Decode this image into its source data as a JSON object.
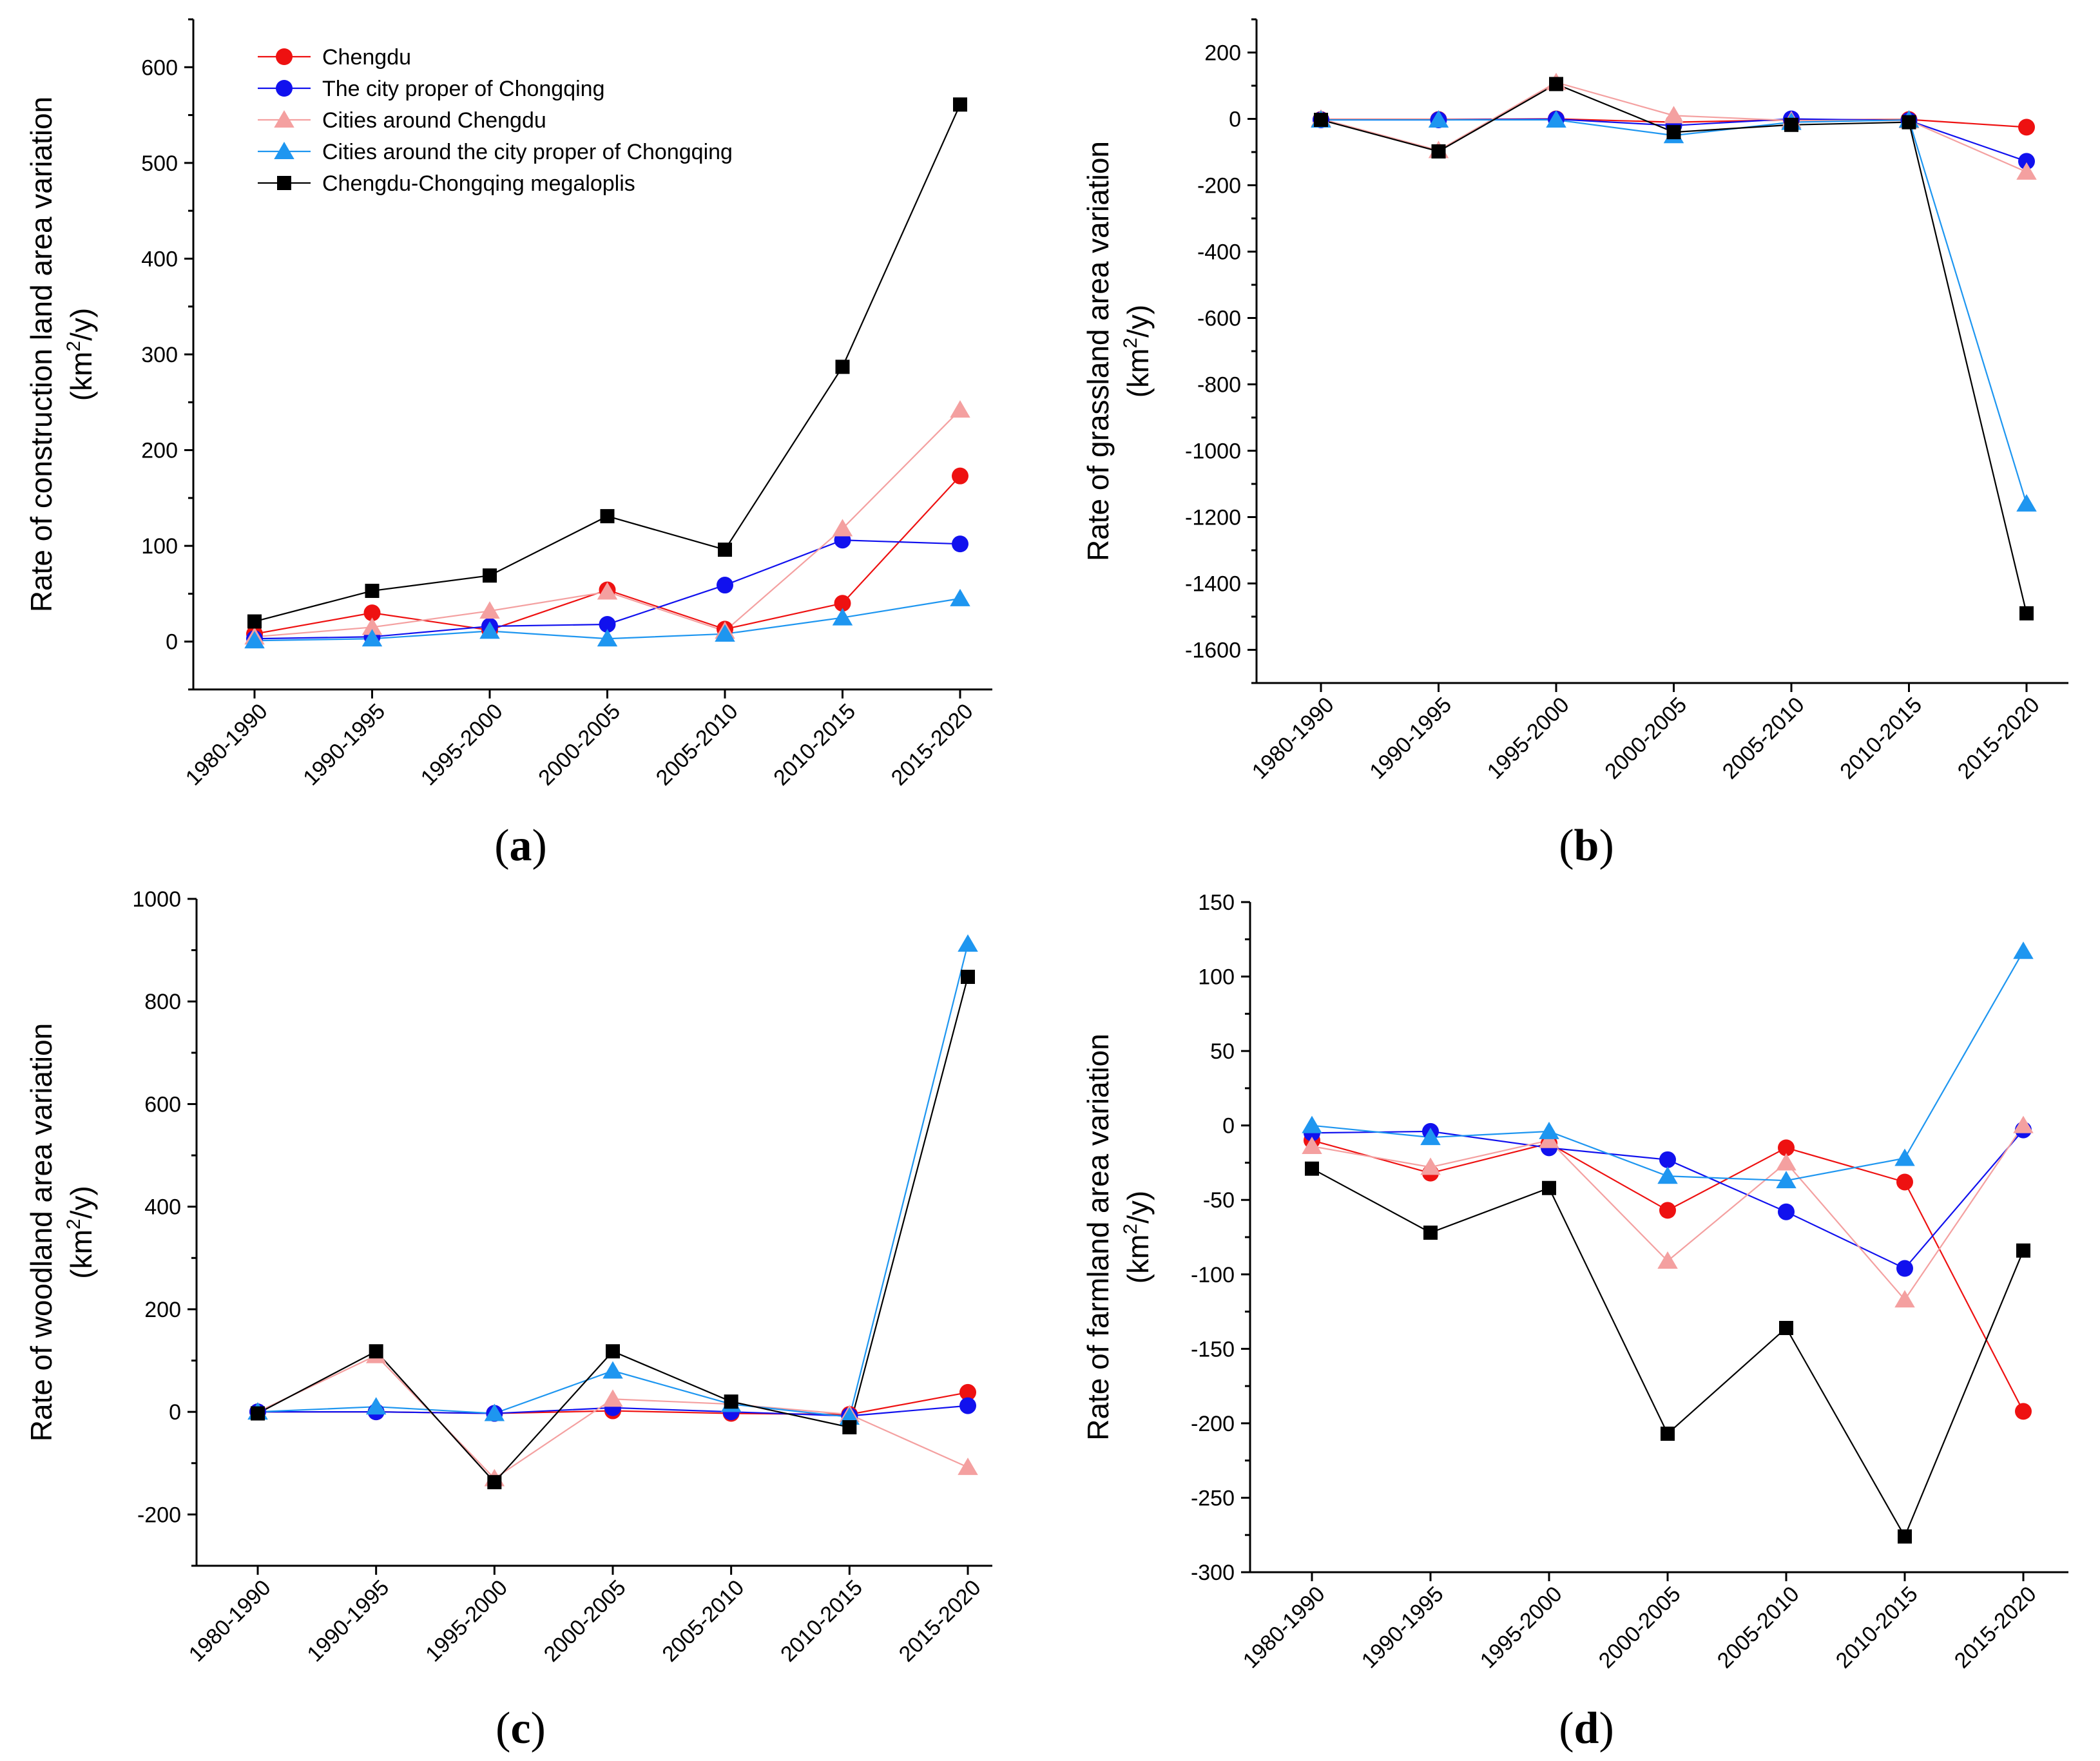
{
  "legend": [
    {
      "name": "Chengdu",
      "color": "#ee1111",
      "marker": "circle"
    },
    {
      "name": "The city proper of Chongqing",
      "color": "#1111ee",
      "marker": "circle"
    },
    {
      "name": "Cities around Chengdu",
      "color": "#f4a0a0",
      "marker": "triangle"
    },
    {
      "name": "Cities around the city proper of Chongqing",
      "color": "#1e96f0",
      "marker": "triangle"
    },
    {
      "name": "Chengdu-Chongqing megaloplis",
      "color": "#000000",
      "marker": "square"
    }
  ],
  "chart_data": [
    {
      "type": "line",
      "panel_label": "a",
      "ylabel_line1": "Rate of construction land area variation",
      "ylabel_line2_pre": "(km",
      "ylabel_line2_sup": "2",
      "ylabel_line2_post": "/y)",
      "categories": [
        "1980-1990",
        "1990-1995",
        "1995-2000",
        "2000-2005",
        "2005-2010",
        "2010-2015",
        "2015-2020"
      ],
      "ylim": [
        -50,
        650
      ],
      "yticks": [
        0,
        100,
        200,
        300,
        400,
        500,
        600
      ],
      "legend_position": "top-left",
      "series": [
        {
          "name": "Chengdu",
          "values": [
            8,
            30,
            12,
            54,
            13,
            40,
            173
          ]
        },
        {
          "name": "The city proper of Chongqing",
          "values": [
            3,
            5,
            16,
            18,
            59,
            106,
            102
          ]
        },
        {
          "name": "Cities around Chengdu",
          "values": [
            5,
            15,
            32,
            52,
            11,
            118,
            242
          ]
        },
        {
          "name": "Cities around the city proper of Chongqing",
          "values": [
            1,
            3,
            11,
            3,
            8,
            25,
            45
          ]
        },
        {
          "name": "Chengdu-Chongqing megaloplis",
          "values": [
            21,
            53,
            69,
            131,
            96,
            287,
            561
          ]
        }
      ]
    },
    {
      "type": "line",
      "panel_label": "b",
      "ylabel_line1": "Rate of grassland area variation",
      "ylabel_line2_pre": "(km",
      "ylabel_line2_sup": "2",
      "ylabel_line2_post": "/y)",
      "categories": [
        "1980-1990",
        "1990-1995",
        "1995-2000",
        "2000-2005",
        "2005-2010",
        "2010-2015",
        "2015-2020"
      ],
      "ylim": [
        -1700,
        300
      ],
      "yticks": [
        -1600,
        -1400,
        -1200,
        -1000,
        -800,
        -600,
        -400,
        -200,
        0,
        200
      ],
      "series": [
        {
          "name": "Chengdu",
          "values": [
            -2,
            -2,
            0,
            -10,
            -3,
            -2,
            -25
          ]
        },
        {
          "name": "The city proper of Chongqing",
          "values": [
            -3,
            -3,
            -1,
            -20,
            0,
            -5,
            -128
          ]
        },
        {
          "name": "Cities around Chengdu",
          "values": [
            0,
            -95,
            110,
            10,
            -5,
            -5,
            -160
          ]
        },
        {
          "name": "Cities around the city proper of Chongqing",
          "values": [
            -3,
            -3,
            -3,
            -50,
            -10,
            -3,
            -1160
          ]
        },
        {
          "name": "Chengdu-Chongqing megaloplis",
          "values": [
            -3,
            -98,
            105,
            -40,
            -18,
            -10,
            -1490
          ]
        }
      ]
    },
    {
      "type": "line",
      "panel_label": "c",
      "ylabel_line1": "Rate of woodland area variation",
      "ylabel_line2_pre": "(km",
      "ylabel_line2_sup": "2",
      "ylabel_line2_post": "/y)",
      "categories": [
        "1980-1990",
        "1990-1995",
        "1995-2000",
        "2000-2005",
        "2005-2010",
        "2010-2015",
        "2015-2020"
      ],
      "ylim": [
        -300,
        1000
      ],
      "yticks": [
        -200,
        0,
        200,
        400,
        600,
        800,
        1000
      ],
      "series": [
        {
          "name": "Chengdu",
          "values": [
            0,
            0,
            -3,
            2,
            -3,
            -5,
            38
          ]
        },
        {
          "name": "The city proper of Chongqing",
          "values": [
            0,
            0,
            -3,
            8,
            0,
            -8,
            12
          ]
        },
        {
          "name": "Cities around Chengdu",
          "values": [
            0,
            110,
            -130,
            25,
            15,
            -5,
            -108
          ]
        },
        {
          "name": "Cities around the city proper of Chongqing",
          "values": [
            0,
            10,
            -3,
            80,
            15,
            -10,
            912
          ]
        },
        {
          "name": "Chengdu-Chongqing megaloplis",
          "values": [
            -3,
            118,
            -137,
            118,
            20,
            -30,
            848
          ]
        }
      ]
    },
    {
      "type": "line",
      "panel_label": "d",
      "ylabel_line1": "Rate of farmland area variation",
      "ylabel_line2_pre": "(km",
      "ylabel_line2_sup": "2",
      "ylabel_line2_post": "/y)",
      "categories": [
        "1980-1990",
        "1990-1995",
        "1995-2000",
        "2000-2005",
        "2005-2010",
        "2010-2015",
        "2015-2020"
      ],
      "ylim": [
        -300,
        150
      ],
      "yticks": [
        -300,
        -250,
        -200,
        -150,
        -100,
        -50,
        0,
        50,
        100,
        150
      ],
      "series": [
        {
          "name": "Chengdu",
          "values": [
            -10,
            -32,
            -12,
            -57,
            -15,
            -38,
            -192
          ]
        },
        {
          "name": "The city proper of Chongqing",
          "values": [
            -5,
            -4,
            -15,
            -23,
            -58,
            -96,
            -3
          ]
        },
        {
          "name": "Cities around Chengdu",
          "values": [
            -14,
            -28,
            -10,
            -91,
            -25,
            -117,
            0
          ]
        },
        {
          "name": "Cities around the city proper of Chongqing",
          "values": [
            0,
            -8,
            -4,
            -34,
            -37,
            -22,
            117
          ]
        },
        {
          "name": "Chengdu-Chongqing megaloplis",
          "values": [
            -29,
            -72,
            -42,
            -207,
            -136,
            -276,
            -84
          ]
        }
      ]
    }
  ]
}
